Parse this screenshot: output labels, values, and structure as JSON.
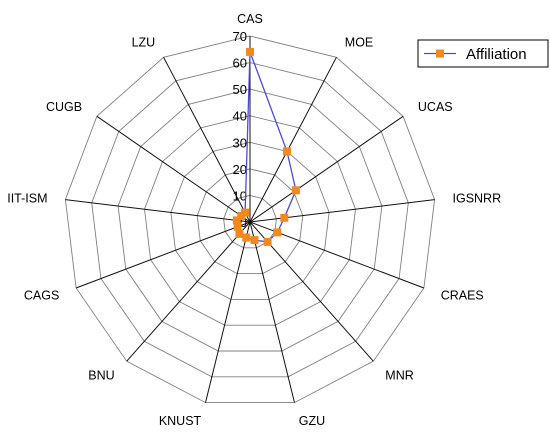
{
  "chart_data": {
    "type": "radar",
    "categories": [
      "CAS",
      "MOE",
      "UCAS",
      "IGSNRR",
      "CRAES",
      "MNR",
      "GZU",
      "KNUST",
      "BNU",
      "CAGS",
      "IIT-ISM",
      "CUGB",
      "LZU"
    ],
    "series": [
      {
        "name": "Affiliation",
        "values": [
          64,
          30,
          21,
          13,
          11,
          10,
          7,
          6,
          6,
          5,
          5,
          4,
          4
        ]
      }
    ],
    "rlim": [
      0,
      70
    ],
    "ticks": [
      0,
      10,
      20,
      30,
      40,
      50,
      60,
      70
    ],
    "grid": true,
    "legend_position": "top-right",
    "colors": {
      "line": "#4a4adf",
      "marker": "#f08a1e",
      "grid": "#7f7f7f",
      "axis": "#111111"
    }
  }
}
